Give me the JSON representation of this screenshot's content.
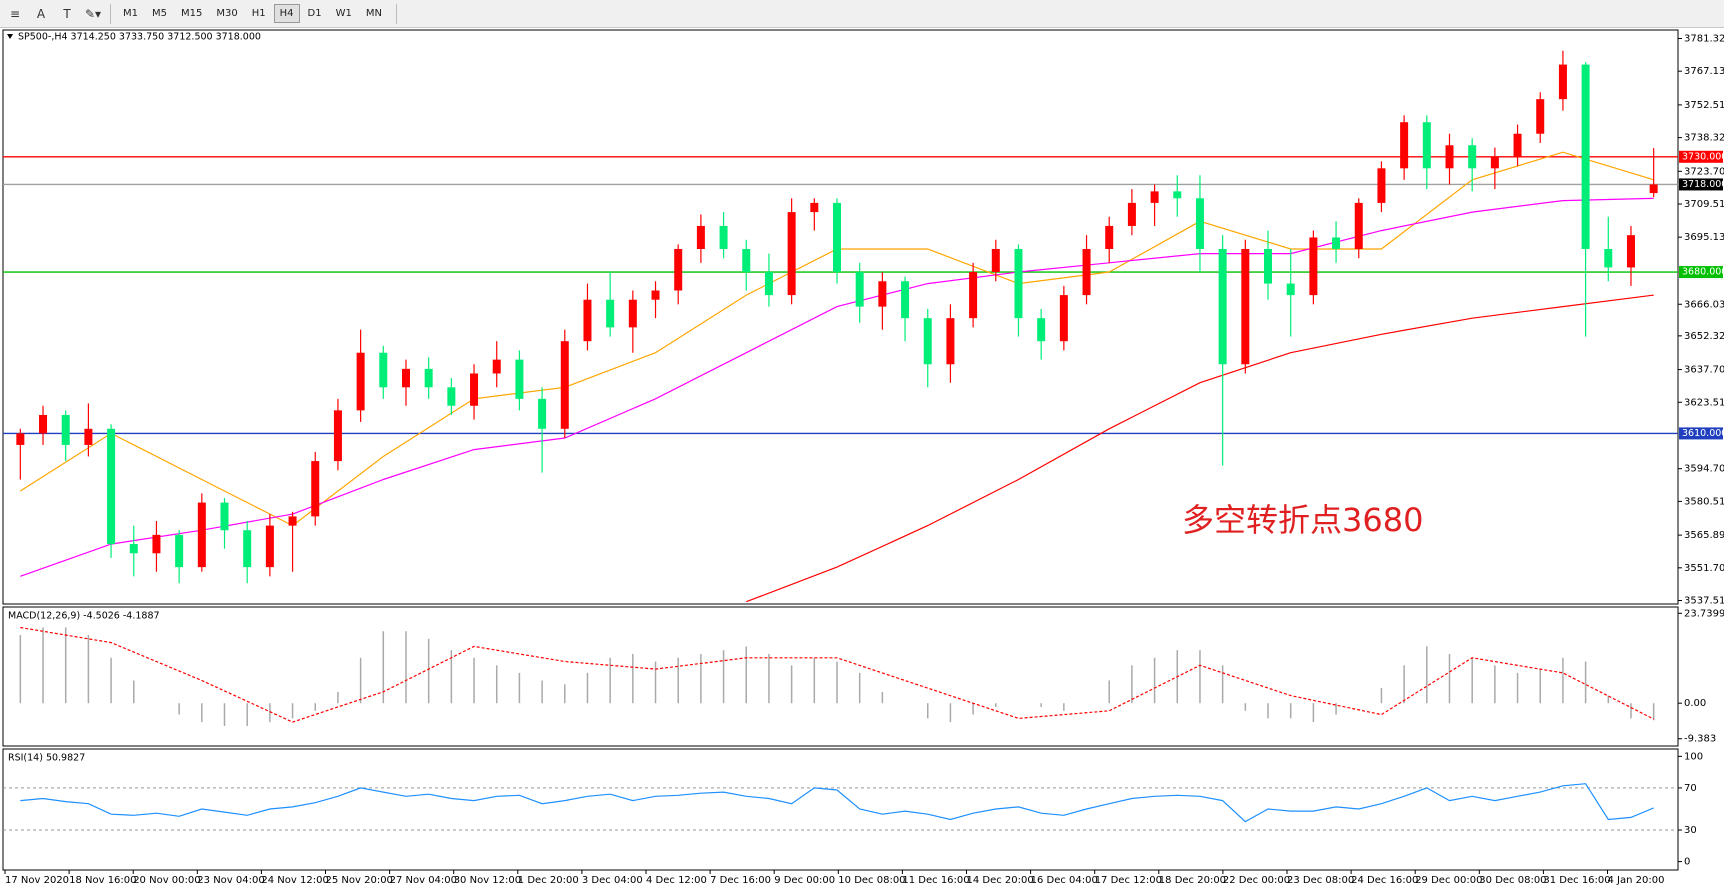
{
  "toolbar": {
    "timeframes": [
      "M1",
      "M5",
      "M15",
      "M30",
      "H1",
      "H4",
      "D1",
      "W1",
      "MN"
    ],
    "active_index": 5
  },
  "chart_data": {
    "type": "candlestick",
    "symbol_info": "SP500-,H4  3714.250 3733.750 3712.500 3718.000",
    "annotation": "多空转折点3680",
    "up_color": "#ff0000",
    "down_color": "#00ee77",
    "ylim": [
      3536,
      3785
    ],
    "yticks": [
      {
        "value": 3781.32,
        "label": "3781.320"
      },
      {
        "value": 3767.13,
        "label": "3767.130"
      },
      {
        "value": 3752.51,
        "label": "3752.510"
      },
      {
        "value": 3738.32,
        "label": "3738.320"
      },
      {
        "value": 3723.7,
        "label": "3723.700"
      },
      {
        "value": 3709.51,
        "label": "3709.510"
      },
      {
        "value": 3695.13,
        "label": "3695.130"
      },
      {
        "value": 3666.03,
        "label": "3666.030"
      },
      {
        "value": 3652.32,
        "label": "3652.320"
      },
      {
        "value": 3637.7,
        "label": "3637.700"
      },
      {
        "value": 3623.51,
        "label": "3623.510"
      },
      {
        "value": 3594.7,
        "label": "3594.700"
      },
      {
        "value": 3580.51,
        "label": "3580.510"
      },
      {
        "value": 3565.89,
        "label": "3565.890"
      },
      {
        "value": 3551.7,
        "label": "3551.700"
      },
      {
        "value": 3537.51,
        "label": "3537.510"
      }
    ],
    "levels": [
      {
        "value": 3730,
        "label": "3730.000",
        "color": "#ff0000",
        "label_background": "#ff0000"
      },
      {
        "value": 3718,
        "label": "3718.000",
        "color": "#a0a0a0",
        "label_background": "#000000"
      },
      {
        "value": 3680,
        "label": "3680.000",
        "color": "#00c000",
        "label_background": "#00c000"
      },
      {
        "value": 3610,
        "label": "3610.000",
        "color": "#1f3fbf",
        "label_background": "#1f3fbf"
      }
    ],
    "time_labels": [
      "17 Nov 2020",
      "18 Nov 16:00",
      "20 Nov 00:00",
      "23 Nov 04:00",
      "24 Nov 12:00",
      "25 Nov 20:00",
      "27 Nov 04:00",
      "30 Nov 12:00",
      "1 Dec 20:00",
      "3 Dec 04:00",
      "4 Dec 12:00",
      "7 Dec 16:00",
      "9 Dec 00:00",
      "10 Dec 08:00",
      "11 Dec 16:00",
      "14 Dec 20:00",
      "16 Dec 04:00",
      "17 Dec 12:00",
      "18 Dec 20:00",
      "22 Dec 00:00",
      "23 Dec 08:00",
      "24 Dec 16:00",
      "29 Dec 00:00",
      "30 Dec 08:00",
      "31 Dec 16:00",
      "4 Jan 20:00"
    ],
    "candles": [
      [
        3605,
        3612,
        3590,
        3610
      ],
      [
        3610,
        3622,
        3605,
        3618
      ],
      [
        3618,
        3620,
        3598,
        3605
      ],
      [
        3605,
        3623,
        3600,
        3612
      ],
      [
        3612,
        3614,
        3556,
        3562
      ],
      [
        3562,
        3570,
        3548,
        3558
      ],
      [
        3558,
        3572,
        3550,
        3566
      ],
      [
        3566,
        3568,
        3545,
        3552
      ],
      [
        3552,
        3584,
        3550,
        3580
      ],
      [
        3580,
        3582,
        3560,
        3568
      ],
      [
        3568,
        3572,
        3545,
        3552
      ],
      [
        3552,
        3575,
        3548,
        3570
      ],
      [
        3570,
        3576,
        3550,
        3574
      ],
      [
        3574,
        3602,
        3570,
        3598
      ],
      [
        3598,
        3625,
        3594,
        3620
      ],
      [
        3620,
        3655,
        3615,
        3645
      ],
      [
        3645,
        3648,
        3625,
        3630
      ],
      [
        3630,
        3642,
        3622,
        3638
      ],
      [
        3638,
        3643,
        3625,
        3630
      ],
      [
        3630,
        3634,
        3618,
        3622
      ],
      [
        3622,
        3640,
        3616,
        3636
      ],
      [
        3636,
        3650,
        3630,
        3642
      ],
      [
        3642,
        3646,
        3620,
        3625
      ],
      [
        3625,
        3630,
        3593,
        3612
      ],
      [
        3612,
        3655,
        3608,
        3650
      ],
      [
        3650,
        3675,
        3646,
        3668
      ],
      [
        3668,
        3680,
        3652,
        3656
      ],
      [
        3656,
        3672,
        3645,
        3668
      ],
      [
        3668,
        3676,
        3660,
        3672
      ],
      [
        3672,
        3692,
        3666,
        3690
      ],
      [
        3690,
        3705,
        3684,
        3700
      ],
      [
        3700,
        3706,
        3686,
        3690
      ],
      [
        3690,
        3694,
        3672,
        3680
      ],
      [
        3680,
        3688,
        3665,
        3670
      ],
      [
        3670,
        3712,
        3666,
        3706
      ],
      [
        3706,
        3712,
        3698,
        3710
      ],
      [
        3710,
        3712,
        3675,
        3680
      ],
      [
        3680,
        3684,
        3658,
        3665
      ],
      [
        3665,
        3680,
        3655,
        3676
      ],
      [
        3676,
        3678,
        3650,
        3660
      ],
      [
        3660,
        3664,
        3630,
        3640
      ],
      [
        3640,
        3666,
        3632,
        3660
      ],
      [
        3660,
        3684,
        3656,
        3680
      ],
      [
        3680,
        3694,
        3676,
        3690
      ],
      [
        3690,
        3692,
        3652,
        3660
      ],
      [
        3660,
        3664,
        3642,
        3650
      ],
      [
        3650,
        3674,
        3646,
        3670
      ],
      [
        3670,
        3696,
        3666,
        3690
      ],
      [
        3690,
        3704,
        3684,
        3700
      ],
      [
        3700,
        3716,
        3696,
        3710
      ],
      [
        3710,
        3718,
        3700,
        3715
      ],
      [
        3715,
        3722,
        3704,
        3712
      ],
      [
        3712,
        3722,
        3680,
        3690
      ],
      [
        3690,
        3696,
        3596,
        3640
      ],
      [
        3640,
        3694,
        3636,
        3690
      ],
      [
        3690,
        3698,
        3668,
        3675
      ],
      [
        3675,
        3690,
        3652,
        3670
      ],
      [
        3670,
        3698,
        3666,
        3695
      ],
      [
        3695,
        3702,
        3684,
        3690
      ],
      [
        3690,
        3712,
        3686,
        3710
      ],
      [
        3710,
        3728,
        3706,
        3725
      ],
      [
        3725,
        3748,
        3720,
        3745
      ],
      [
        3745,
        3748,
        3716,
        3725
      ],
      [
        3725,
        3740,
        3718,
        3735
      ],
      [
        3735,
        3738,
        3715,
        3725
      ],
      [
        3725,
        3734,
        3716,
        3730
      ],
      [
        3730,
        3744,
        3726,
        3740
      ],
      [
        3740,
        3758,
        3736,
        3755
      ],
      [
        3755,
        3776,
        3750,
        3770
      ],
      [
        3770,
        3771,
        3652,
        3690
      ],
      [
        3690,
        3704,
        3676,
        3682
      ],
      [
        3682,
        3700,
        3674,
        3696
      ],
      [
        3714.25,
        3733.75,
        3712.5,
        3718
      ]
    ],
    "moving_averages": [
      {
        "color": "#ffa500",
        "x": [
          0,
          4,
          8,
          12,
          16,
          20,
          24,
          28,
          32,
          36,
          40,
          44,
          48,
          52,
          56,
          60,
          64,
          68,
          72
        ],
        "values": [
          3585,
          3610,
          3590,
          3570,
          3600,
          3625,
          3630,
          3645,
          3670,
          3690,
          3690,
          3675,
          3680,
          3702,
          3690,
          3690,
          3720,
          3732,
          3720
        ]
      },
      {
        "color": "#ff00ff",
        "x": [
          0,
          4,
          8,
          12,
          16,
          20,
          24,
          28,
          32,
          36,
          40,
          44,
          48,
          52,
          56,
          60,
          64,
          68,
          72
        ],
        "values": [
          3548,
          3562,
          3568,
          3575,
          3590,
          3603,
          3608,
          3625,
          3645,
          3665,
          3675,
          3680,
          3684,
          3688,
          3688,
          3698,
          3706,
          3711,
          3712
        ]
      },
      {
        "color": "#ff0000",
        "x": [
          32,
          36,
          40,
          44,
          48,
          52,
          56,
          60,
          64,
          68,
          72
        ],
        "values": [
          3537,
          3552,
          3570,
          3590,
          3612,
          3632,
          3645,
          3653,
          3660,
          3665,
          3670
        ]
      }
    ],
    "macd": {
      "label": "MACD(12,26,9) -4.5026 -4.1887",
      "color": "#a9a9a9",
      "signal_color": "#ff0000",
      "ylim": [
        -11.3,
        25.4
      ],
      "yticks": [
        23.7399,
        {
          "value": 0,
          "label": "0.00"
        },
        -9.383
      ],
      "histogram": [
        18,
        20,
        20,
        18,
        12,
        6,
        0,
        -3,
        -5,
        -6,
        -6,
        -5,
        -4,
        -2,
        3,
        12,
        19,
        19,
        17,
        14,
        12,
        10,
        8,
        6,
        5,
        8,
        12,
        13,
        11,
        12,
        13,
        14,
        15,
        13,
        10,
        12,
        11,
        8,
        3,
        0,
        -4,
        -5,
        -3,
        -1,
        0,
        -1,
        -2,
        0,
        6,
        10,
        12,
        14,
        14,
        10,
        -2,
        -4,
        -4,
        -5,
        -3,
        0,
        4,
        10,
        15,
        13,
        12,
        10,
        8,
        9,
        12,
        11,
        2,
        -4,
        -4.5026
      ],
      "signal": {
        "x": [
          0,
          4,
          8,
          12,
          16,
          20,
          24,
          28,
          32,
          36,
          40,
          44,
          48,
          52,
          56,
          60,
          64,
          68,
          72
        ],
        "values": [
          20,
          16,
          6,
          -5,
          3,
          15,
          11,
          9,
          12,
          12,
          4,
          -4,
          -2,
          10,
          2,
          -3,
          12,
          8,
          -4.1887
        ]
      }
    },
    "rsi": {
      "label": "RSI(14) 50.9827",
      "color": "#1e90ff",
      "ylim": [
        -8,
        107
      ],
      "yticks": [
        100,
        70,
        30,
        0
      ],
      "values": [
        58,
        60,
        57,
        55,
        45,
        44,
        46,
        43,
        50,
        47,
        44,
        50,
        52,
        56,
        62,
        70,
        66,
        62,
        64,
        60,
        58,
        62,
        63,
        55,
        58,
        62,
        64,
        58,
        62,
        63,
        65,
        66,
        62,
        60,
        55,
        70,
        68,
        50,
        45,
        48,
        45,
        40,
        46,
        50,
        52,
        46,
        44,
        50,
        55,
        60,
        62,
        63,
        62,
        58,
        38,
        50,
        48,
        48,
        52,
        50,
        55,
        62,
        70,
        58,
        62,
        58,
        62,
        66,
        72,
        74,
        40,
        42,
        50.9827
      ]
    }
  }
}
